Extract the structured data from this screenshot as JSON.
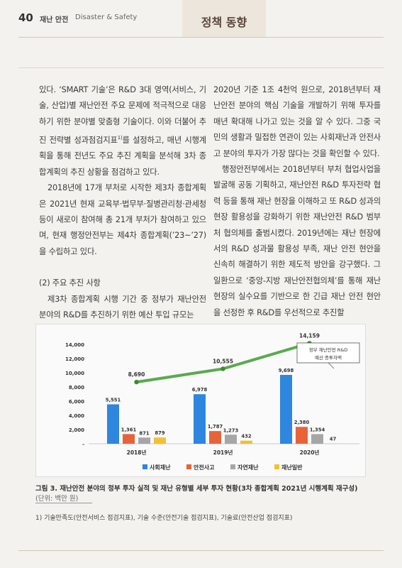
{
  "header": {
    "page_number": "40",
    "section_ko": "재난 안전",
    "section_en": "Disaster & Safety",
    "tab_title": "정책 동향"
  },
  "left_column": {
    "p1": "있다. ‘SMART 기술’은 R&D 3대 영역(서비스, 기술, 산업)별 재난안전 주요 문제에 적극적으로 대응하기 위한 분야별 맞춤형 기술이다. 이와 더불어 추진 전략별 성과점검지표",
    "p1_sup": "1)",
    "p1_rest": "를 설정하고, 매년 시행계획을 통해 전년도 주요 추진 계획을 분석해 3차 종합계획의 추진 상황을 점검하고 있다.",
    "p2": "2018년에 17개 부처로 시작한 제3차 종합계획은 2021년 현재 교육부·법무부·질병관리청·관세청 등이 새로이 참여해 총 21개 부처가 참여하고 있으며, 현재 행정안전부는 제4차 종합계획(’23~’27)을 수립하고 있다.",
    "subhead": "(2) 주요 추진 사항",
    "p3": "제3차 종합계획 시행 기간 중 정부가 재난안전 분야의 R&D를 추진하기 위한 예산 투입 규모는"
  },
  "right_column": {
    "p1": "2020년 기준 1조 4천억 원으로, 2018년부터 재난안전 분야의 핵심 기술을 개발하기 위해 투자를 매년 확대해 나가고 있는 것을 알 수 있다. 그중 국민의 생활과 밀접한 연관이 있는 사회재난과 안전사고 분야의 투자가 가장 많다는 것을 확인할 수 있다.",
    "p2": "행정안전부에서는 2018년부터 부처 협업사업을 발굴해 공동 기획하고, 재난안전 R&D 투자전략 협력 등을 통해 재난 현장을 이해하고 또 R&D 성과의 현장 활용성을 강화하기 위한 재난안전 R&D 범부처 협의체를 출범시켰다. 2019년에는 재난 현장에서의 R&D 성과물 활용성 부족, 재난 안전 현안을 신속히 해결하기 위한 제도적 방안을 강구했다. 그 일환으로 ‘중앙-지방 재난안전협의체’를 통해 재난 현장의 실수요를 기반으로 한 긴급 재난 안전 현안을 선정한 후 R&D를 우선적으로 추진할"
  },
  "chart_data": {
    "type": "bar",
    "categories": [
      "2018년",
      "2019년",
      "2020년"
    ],
    "series": [
      {
        "name": "사회재난",
        "values": [
          5551,
          6978,
          9698
        ],
        "color": "#2e86de"
      },
      {
        "name": "안전사고",
        "values": [
          1361,
          1787,
          2380
        ],
        "color": "#e8633a"
      },
      {
        "name": "자연재난",
        "values": [
          871,
          1273,
          1354
        ],
        "color": "#a6a6a6"
      },
      {
        "name": "재난일반",
        "values": [
          879,
          432,
          47
        ],
        "color": "#f2c12e"
      }
    ],
    "line": {
      "name": "정부 재난안전 R&D 예산 증투자액",
      "values": [
        8690,
        10555,
        14159
      ],
      "color": "#5aaa4e"
    },
    "value_labels": {
      "bars": [
        [
          "5,551",
          "1,361",
          "871",
          "879"
        ],
        [
          "6,978",
          "1,787",
          "1,273",
          "432"
        ],
        [
          "9,698",
          "2,380",
          "1,354",
          "47"
        ]
      ],
      "line": [
        "8,690",
        "10,555",
        "14,159"
      ]
    },
    "y_ticks": [
      "14,000",
      "12,000",
      "10,000",
      "8,000",
      "6,000",
      "4,000",
      "2,000",
      "-"
    ],
    "ylim": [
      0,
      14000
    ],
    "annotation_line1": "정부 재난안전 R&D",
    "annotation_line2": "예산 증투자액",
    "legend_position": "bottom"
  },
  "caption": {
    "text": "그림 3. 재난안전 분야의 정부 투자 실적 및 재난 유형별 세부 투자 현황(3차 종합계획 2021년 시행계획 재구성)",
    "unit": "(단위: 백만 원)"
  },
  "footnote": "1) 기술만족도(안전서비스 점검지표), 기술 수준(안전기술 점검지표), 기술료(안전산업 점검지표)"
}
